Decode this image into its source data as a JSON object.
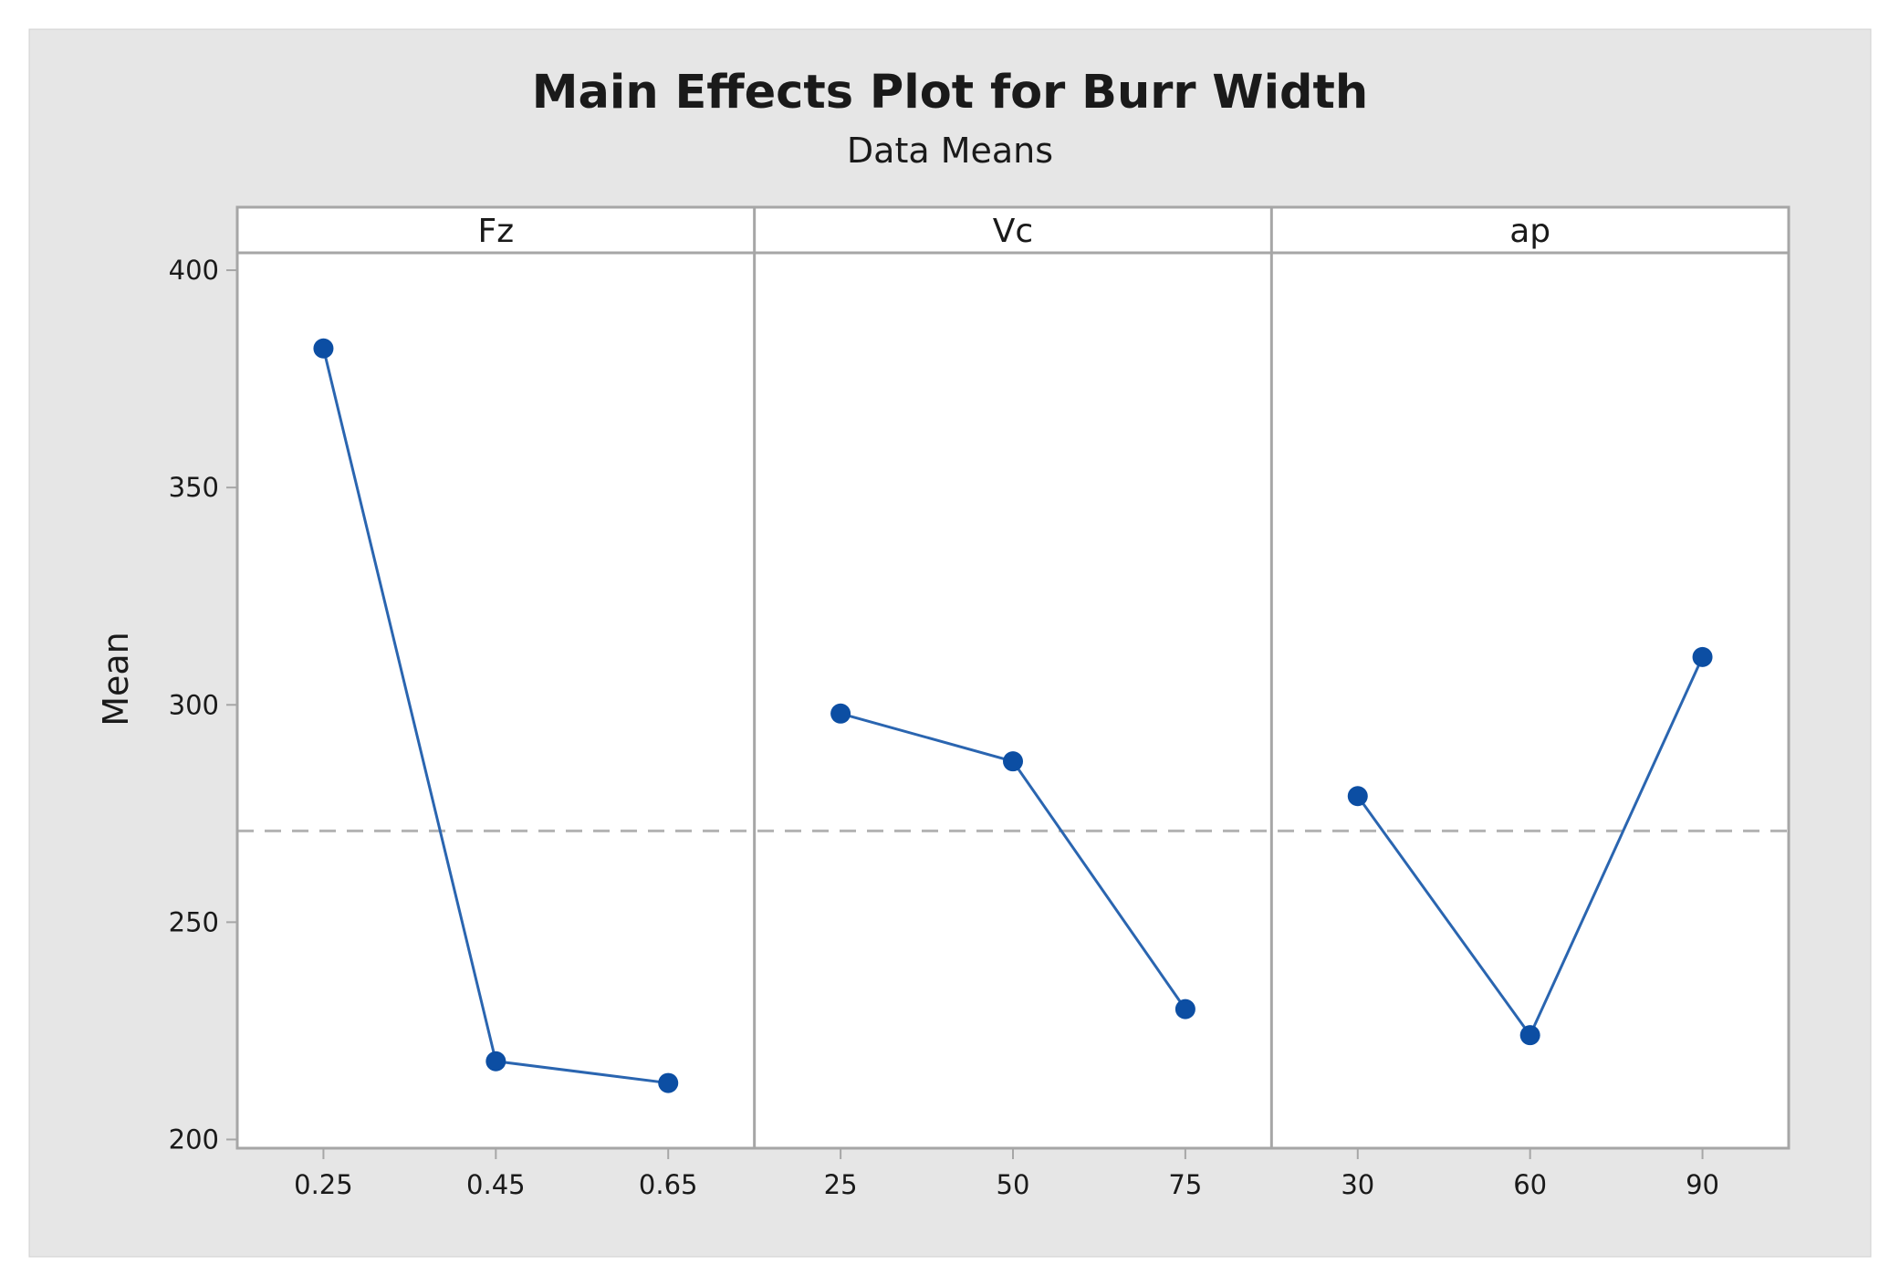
{
  "colors": {
    "outer_background": "#e6e6e6",
    "plot_background": "#ffffff",
    "frame": "#a6a6a6",
    "series": "#2a65b0",
    "marker": "#0c4ea3",
    "reference_line": "#b3b3b3"
  },
  "chart_data": {
    "type": "line",
    "title": "Main Effects Plot for Burr Width",
    "subtitle": "Data Means",
    "ylabel": "Mean",
    "ylim": [
      198,
      404
    ],
    "y_ticks": [
      200,
      250,
      300,
      350,
      400
    ],
    "y_tick_labels": [
      "200",
      "250",
      "300",
      "350",
      "400"
    ],
    "reference_line": 271,
    "reference_line_style": "dashed",
    "grid": false,
    "legend": "none",
    "panels": [
      {
        "factor": "Fz",
        "levels": [
          "0.25",
          "0.45",
          "0.65"
        ],
        "means": [
          382,
          218,
          213
        ]
      },
      {
        "factor": "Vc",
        "levels": [
          "25",
          "50",
          "75"
        ],
        "means": [
          298,
          287,
          230
        ]
      },
      {
        "factor": "ap",
        "levels": [
          "30",
          "60",
          "90"
        ],
        "means": [
          279,
          224,
          311
        ]
      }
    ]
  }
}
